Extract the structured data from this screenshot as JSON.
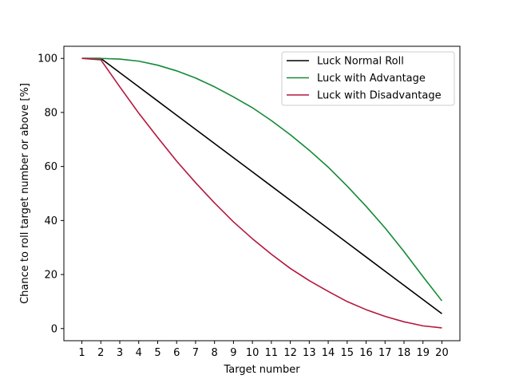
{
  "chart_data": {
    "type": "line",
    "title": "",
    "xlabel": "Target number",
    "ylabel": "Chance to roll target number or above [%]",
    "xlim": [
      0.05,
      20.95
    ],
    "ylim": [
      -4.5,
      104.5
    ],
    "x_ticks": [
      1,
      2,
      3,
      4,
      5,
      6,
      7,
      8,
      9,
      10,
      11,
      12,
      13,
      14,
      15,
      16,
      17,
      18,
      19,
      20
    ],
    "y_ticks": [
      0,
      20,
      40,
      60,
      80,
      100
    ],
    "grid": false,
    "legend_position": "top-right",
    "x": [
      1,
      2,
      3,
      4,
      5,
      6,
      7,
      8,
      9,
      10,
      11,
      12,
      13,
      14,
      15,
      16,
      17,
      18,
      19,
      20
    ],
    "series": [
      {
        "name": "Luck Normal Roll",
        "color": "#000000",
        "values": [
          100,
          100,
          94.75,
          89.5,
          84.25,
          79,
          73.75,
          68.5,
          63.25,
          58,
          52.75,
          47.5,
          42.25,
          37,
          31.75,
          26.5,
          21.25,
          16,
          10.75,
          5.5
        ]
      },
      {
        "name": "Luck with Advantage",
        "color": "#138a36",
        "values": [
          100,
          100,
          99.75,
          99.0,
          97.5,
          95.4,
          92.75,
          89.5,
          85.75,
          81.75,
          77.0,
          71.75,
          66.0,
          59.75,
          52.75,
          45.25,
          37.25,
          28.5,
          19.25,
          10.25
        ]
      },
      {
        "name": "Luck with Disadvantage",
        "color": "#b5173e",
        "values": [
          100,
          99.5,
          89.5,
          79.75,
          70.75,
          62.0,
          54.0,
          46.5,
          39.5,
          33.25,
          27.5,
          22.25,
          17.75,
          13.75,
          10.0,
          7.0,
          4.5,
          2.5,
          1.0,
          0.25
        ]
      }
    ]
  }
}
